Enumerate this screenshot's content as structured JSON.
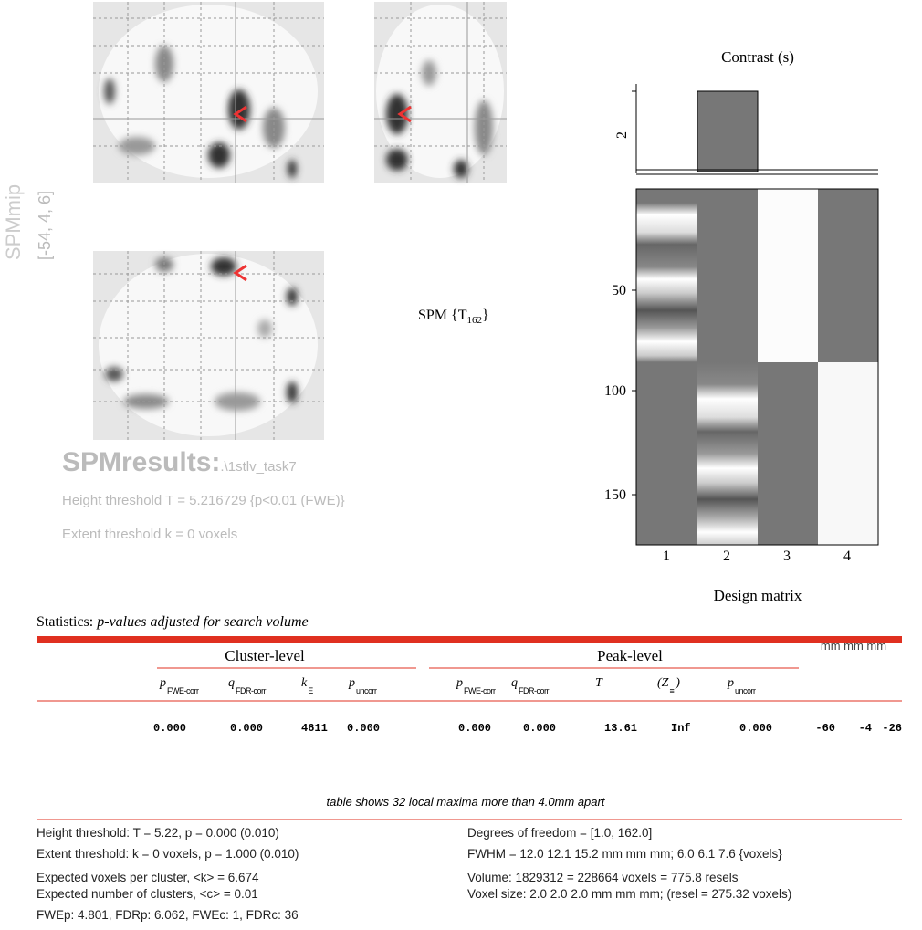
{
  "glass_brain": {
    "label": "SPMmip",
    "coords": "[-54, 4, 6]"
  },
  "results": {
    "title": "SPMresults:",
    "file": ".\\1stlv_task7",
    "height_threshold": "Height threshold T = 5.216729  {p<0.01 (FWE)}",
    "extent_threshold": "Extent threshold k = 0 voxels"
  },
  "spm_label": {
    "text": "SPM {T",
    "sub": "162",
    "close": "}"
  },
  "contrast": {
    "title": "Contrast (s)",
    "tick": "2"
  },
  "design_matrix": {
    "title": "Design matrix",
    "yticks": [
      "50",
      "100",
      "150"
    ],
    "xticks": [
      "1",
      "2",
      "3",
      "4"
    ]
  },
  "statistics": {
    "label": "Statistics:",
    "note": "p-values adjusted for search volume"
  },
  "table": {
    "groups": [
      "Cluster-level",
      "Peak-level"
    ],
    "coords_header": "mm mm mm",
    "headers": [
      {
        "sym": "p",
        "sub": "FWE-corr"
      },
      {
        "sym": "q",
        "sub": "FDR-corr"
      },
      {
        "sym": "k",
        "sub": "E"
      },
      {
        "sym": "p",
        "sub": "uncorr"
      },
      {
        "sym": "p",
        "sub": "FWE-corr"
      },
      {
        "sym": "q",
        "sub": "FDR-corr"
      },
      {
        "sym": "T"
      },
      {
        "sym": "(Z",
        "sub": "≡",
        "tail": ")"
      },
      {
        "sym": "p",
        "sub": "uncorr"
      }
    ],
    "rows": [
      [
        "0.000",
        "0.000",
        "4611",
        "0.000",
        "0.000",
        "0.000",
        "13.61",
        "Inf",
        "0.000",
        "-60",
        "-4",
        "-26"
      ]
    ]
  },
  "footnote": "table shows 32 local maxima more than 4.0mm apart",
  "footer": {
    "left": [
      "Height threshold: T = 5.22, p = 0.000 (0.010)",
      "Extent threshold: k = 0 voxels, p = 1.000 (0.010)",
      "Expected voxels per cluster, <k> = 6.674",
      "Expected number of clusters, <c> = 0.01",
      "FWEp: 4.801, FDRp: 6.062, FWEc: 1, FDRc: 36"
    ],
    "right": [
      "Degrees of freedom = [1.0, 162.0]",
      "FWHM = 12.0 12.1 15.2 mm mm mm; 6.0 6.1 7.6 {voxels}",
      "Volume: 1829312 = 228664 voxels = 775.8 resels",
      "Voxel size: 2.0 2.0 2.0 mm mm mm; (resel = 275.32 voxels)"
    ]
  }
}
